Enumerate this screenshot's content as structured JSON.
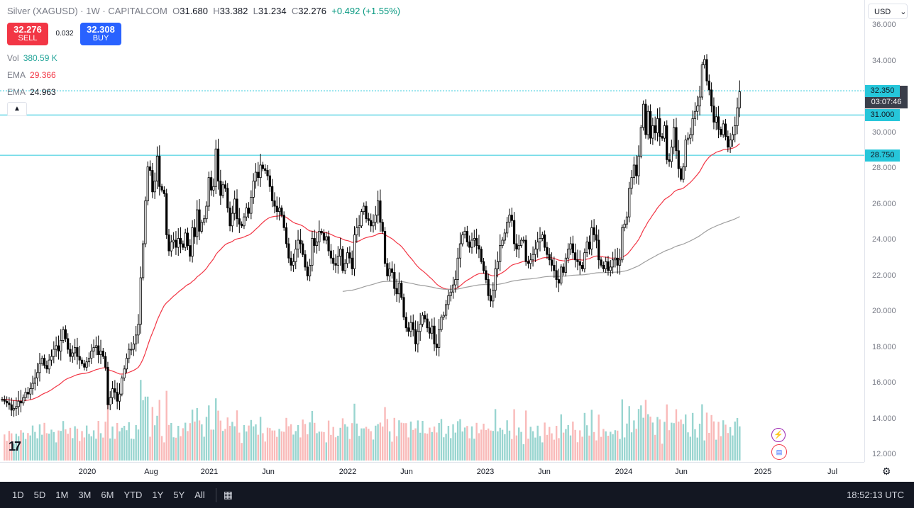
{
  "header": {
    "symbol": "Silver (XAGUSD)",
    "interval": "1W",
    "source": "CAPITALCOM",
    "open_label": "O",
    "open": "31.680",
    "high_label": "H",
    "high": "33.382",
    "low_label": "L",
    "low": "31.234",
    "close_label": "C",
    "close": "32.276",
    "change": "+0.492 (+1.55%)"
  },
  "trade": {
    "sell_price": "32.276",
    "sell_label": "SELL",
    "buy_price": "32.308",
    "buy_label": "BUY",
    "spread": "0.032"
  },
  "indicators": [
    {
      "name": "Vol",
      "value": "380.59 K",
      "color": "#26a69a"
    },
    {
      "name": "EMA",
      "value": "29.366",
      "color": "#f23645"
    },
    {
      "name": "EMA",
      "value": "24.963",
      "color": "#787b86"
    }
  ],
  "currency": "USD",
  "current_price": {
    "price": "32.276",
    "countdown": "03:07:46"
  },
  "horizontal_lines": [
    {
      "value": 32.35,
      "label": "32.350"
    },
    {
      "value": 31.0,
      "label": "31.000"
    },
    {
      "value": 28.75,
      "label": "28.750"
    }
  ],
  "bottom_toolbar": {
    "timeframes": [
      "1D",
      "5D",
      "1M",
      "3M",
      "6M",
      "YTD",
      "1Y",
      "5Y",
      "All"
    ],
    "clock": "18:52:13 UTC"
  },
  "icons": {
    "collapse": "chevron-up-icon",
    "settings": "gear-icon",
    "calendar": "calendar-range-icon",
    "logo": "tradingview-logo",
    "lightning": "lightning-icon",
    "flag": "us-flag-icon"
  },
  "colors": {
    "up": "#26a69a",
    "down": "#ef5350",
    "ema_fast": "#f23645",
    "ema_slow": "#9e9e9e",
    "hline": "#26c6da",
    "candle": "#000000"
  },
  "chart_data": {
    "type": "candlestick",
    "title": "Silver (XAGUSD) · 1W · CAPITALCOM",
    "x_ticks": [
      "2020",
      "Aug",
      "2021",
      "Jun",
      "2022",
      "Jun",
      "2023",
      "Jun",
      "2024",
      "Jun",
      "2025",
      "Jul"
    ],
    "y_ticks": [
      "12.000",
      "14.000",
      "16.000",
      "18.000",
      "20.000",
      "22.000",
      "24.000",
      "26.000",
      "28.000",
      "30.000",
      "34.000",
      "36.000"
    ],
    "ylim": [
      11.6,
      36.4
    ],
    "weekly_close": [
      15.1,
      15.0,
      14.9,
      14.8,
      14.5,
      14.6,
      14.7,
      15.0,
      14.9,
      15.2,
      15.5,
      15.4,
      15.7,
      16.0,
      16.3,
      16.6,
      17.1,
      17.4,
      17.0,
      16.8,
      17.3,
      17.5,
      17.9,
      18.1,
      17.8,
      18.4,
      19.0,
      18.5,
      17.9,
      17.5,
      17.7,
      18.0,
      17.5,
      17.3,
      17.1,
      16.9,
      17.2,
      17.4,
      17.8,
      18.0,
      18.1,
      17.6,
      17.8,
      17.5,
      16.9,
      14.8,
      15.2,
      15.7,
      15.5,
      15.0,
      15.4,
      16.3,
      16.8,
      17.4,
      17.9,
      17.9,
      18.2,
      18.7,
      19.3,
      21.9,
      23.8,
      26.2,
      28.1,
      27.9,
      26.7,
      27.3,
      28.7,
      27.0,
      26.8,
      26.6,
      24.3,
      23.4,
      23.9,
      24.0,
      23.6,
      24.1,
      23.8,
      23.6,
      24.4,
      23.7,
      23.1,
      24.7,
      24.2,
      25.7,
      24.5,
      25.0,
      25.2,
      25.9,
      27.5,
      26.8,
      27.0,
      29.1,
      27.3,
      26.5,
      27.1,
      26.9,
      25.8,
      24.8,
      25.5,
      26.3,
      25.2,
      24.9,
      24.8,
      25.3,
      25.8,
      25.5,
      26.4,
      27.3,
      27.8,
      27.5,
      28.2,
      28.0,
      27.9,
      27.6,
      27.0,
      26.2,
      25.9,
      25.6,
      25.8,
      25.4,
      24.7,
      23.8,
      23.0,
      22.6,
      22.8,
      23.5,
      24.0,
      23.8,
      23.2,
      22.5,
      22.0,
      22.6,
      24.1,
      23.7,
      23.9,
      24.5,
      24.4,
      24.0,
      24.2,
      23.4,
      23.0,
      22.7,
      22.6,
      23.1,
      23.5,
      22.3,
      22.7,
      23.3,
      23.0,
      22.4,
      24.3,
      24.7,
      24.8,
      25.6,
      25.9,
      25.2,
      25.1,
      24.8,
      25.0,
      25.4,
      26.2,
      25.0,
      24.5,
      22.7,
      22.0,
      22.4,
      22.2,
      21.3,
      21.0,
      21.6,
      20.8,
      19.7,
      19.1,
      18.9,
      19.4,
      19.0,
      18.2,
      18.9,
      19.3,
      19.8,
      19.6,
      19.1,
      18.8,
      19.2,
      18.2,
      18.0,
      19.0,
      19.7,
      19.8,
      20.4,
      20.9,
      21.1,
      21.5,
      21.8,
      23.0,
      23.8,
      24.3,
      24.5,
      23.9,
      23.6,
      24.0,
      24.1,
      23.7,
      23.5,
      22.8,
      22.3,
      21.8,
      20.9,
      20.6,
      21.2,
      22.4,
      22.8,
      23.7,
      24.0,
      24.4,
      25.0,
      25.4,
      25.1,
      23.8,
      23.5,
      23.7,
      24.0,
      24.0,
      22.8,
      22.7,
      22.9,
      23.2,
      23.5,
      23.9,
      24.1,
      24.3,
      23.6,
      23.2,
      22.9,
      22.6,
      22.3,
      21.8,
      21.6,
      22.5,
      22.2,
      23.0,
      23.5,
      23.8,
      23.3,
      22.9,
      22.8,
      22.6,
      22.4,
      23.3,
      23.9,
      23.5,
      24.7,
      24.3,
      24.0,
      22.9,
      22.6,
      22.4,
      22.8,
      22.3,
      22.5,
      22.9,
      23.0,
      22.6,
      22.9,
      24.7,
      24.9,
      25.3,
      26.9,
      27.5,
      28.2,
      27.6,
      28.7,
      30.3,
      31.6,
      29.9,
      31.2,
      29.7,
      30.4,
      30.0,
      30.8,
      29.8,
      29.7,
      30.4,
      28.5,
      28.4,
      29.2,
      30.3,
      29.0,
      28.0,
      27.4,
      28.1,
      29.6,
      29.7,
      29.9,
      30.8,
      31.2,
      31.5,
      32.0,
      33.8,
      34.1,
      32.9,
      32.4,
      31.5,
      30.6,
      30.9,
      30.2,
      29.9,
      30.5,
      29.8,
      29.2,
      29.6,
      29.9,
      30.4,
      31.4,
      32.3
    ]
  }
}
